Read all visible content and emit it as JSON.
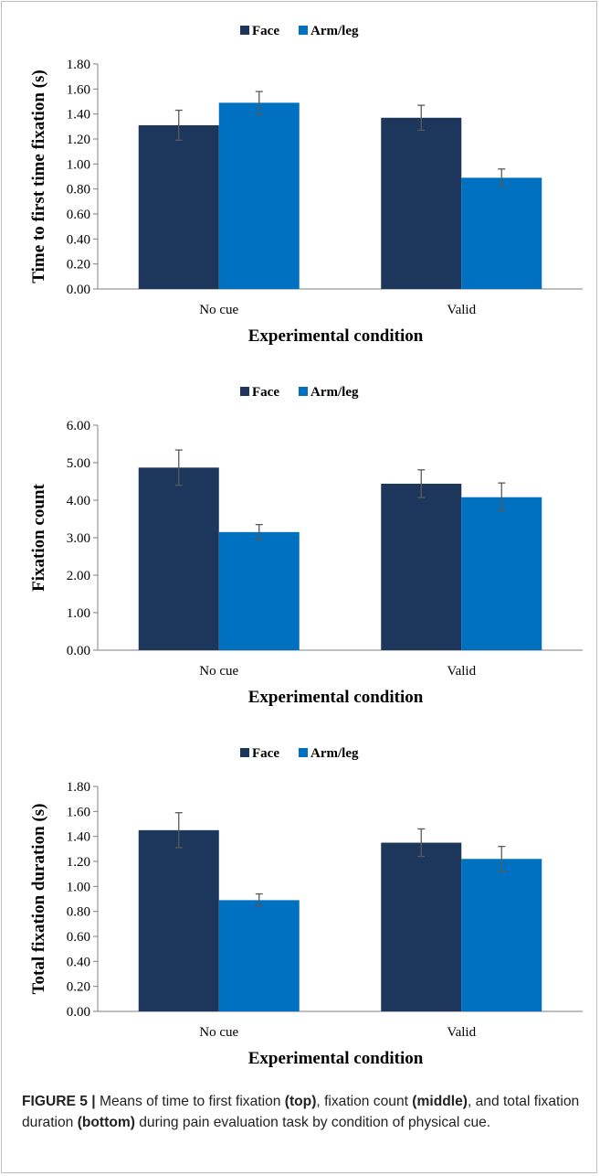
{
  "colors": {
    "face": "#1c365c",
    "armleg": "#0070c0",
    "axis": "#7f7f7f",
    "errorbar": "#595959"
  },
  "chart_data": [
    {
      "type": "bar",
      "categories": [
        "No cue",
        "Valid"
      ],
      "series": [
        {
          "name": "Face",
          "values": [
            1.31,
            1.37
          ],
          "errors": [
            0.12,
            0.1
          ]
        },
        {
          "name": "Arm/leg",
          "values": [
            1.49,
            0.89
          ],
          "errors": [
            0.09,
            0.07
          ]
        }
      ],
      "xlabel": "Experimental condition",
      "ylabel": "Time to first time fixation (s)",
      "ylim": [
        0,
        1.8
      ],
      "yticks": [
        "0.00",
        "0.20",
        "0.40",
        "0.60",
        "0.80",
        "1.00",
        "1.20",
        "1.40",
        "1.60",
        "1.80"
      ],
      "legend": "top-center"
    },
    {
      "type": "bar",
      "categories": [
        "No cue",
        "Valid"
      ],
      "series": [
        {
          "name": "Face",
          "values": [
            4.87,
            4.44
          ],
          "errors": [
            0.47,
            0.37
          ]
        },
        {
          "name": "Arm/leg",
          "values": [
            3.15,
            4.08
          ],
          "errors": [
            0.2,
            0.38
          ]
        }
      ],
      "xlabel": "Experimental condition",
      "ylabel": "Fixation count",
      "ylim": [
        0,
        6
      ],
      "yticks": [
        "0.00",
        "1.00",
        "2.00",
        "3.00",
        "4.00",
        "5.00",
        "6.00"
      ],
      "legend": "top-center"
    },
    {
      "type": "bar",
      "categories": [
        "No cue",
        "Valid"
      ],
      "series": [
        {
          "name": "Face",
          "values": [
            1.45,
            1.35
          ],
          "errors": [
            0.14,
            0.11
          ]
        },
        {
          "name": "Arm/leg",
          "values": [
            0.89,
            1.22
          ],
          "errors": [
            0.05,
            0.1
          ]
        }
      ],
      "xlabel": "Experimental condition",
      "ylabel": "Total fixation duration (s)",
      "ylim": [
        0,
        1.8
      ],
      "yticks": [
        "0.00",
        "0.20",
        "0.40",
        "0.60",
        "0.80",
        "1.00",
        "1.20",
        "1.40",
        "1.60",
        "1.80"
      ],
      "legend": "top-center"
    }
  ],
  "caption": {
    "figure_label": "FIGURE 5 |",
    "t1": " Means of time to first fixation ",
    "b1": "(top)",
    "t2": ", fixation count ",
    "b2": "(middle)",
    "t3": ", and total fixation duration ",
    "b3": "(bottom)",
    "t4": " during pain evaluation task by condition of physical cue."
  }
}
